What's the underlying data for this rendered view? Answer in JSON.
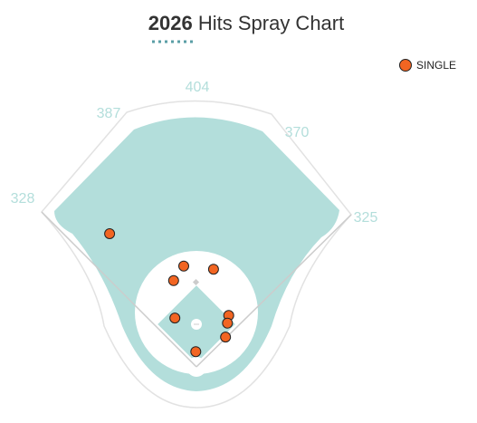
{
  "chart_data": {
    "type": "scatter",
    "title_year": "2026",
    "title": "Hits Spray Chart",
    "fence_distances": [
      "328",
      "387",
      "404",
      "370",
      "325"
    ],
    "series": [
      {
        "name": "SINGLE",
        "color": "#f26522",
        "x": [
          -137,
          -20,
          27,
          -36,
          -34,
          51,
          49,
          46,
          -1
        ],
        "values": [
          210,
          159,
          154,
          136,
          77,
          81,
          69,
          47,
          24
        ]
      }
    ],
    "legend": "top-right"
  }
}
